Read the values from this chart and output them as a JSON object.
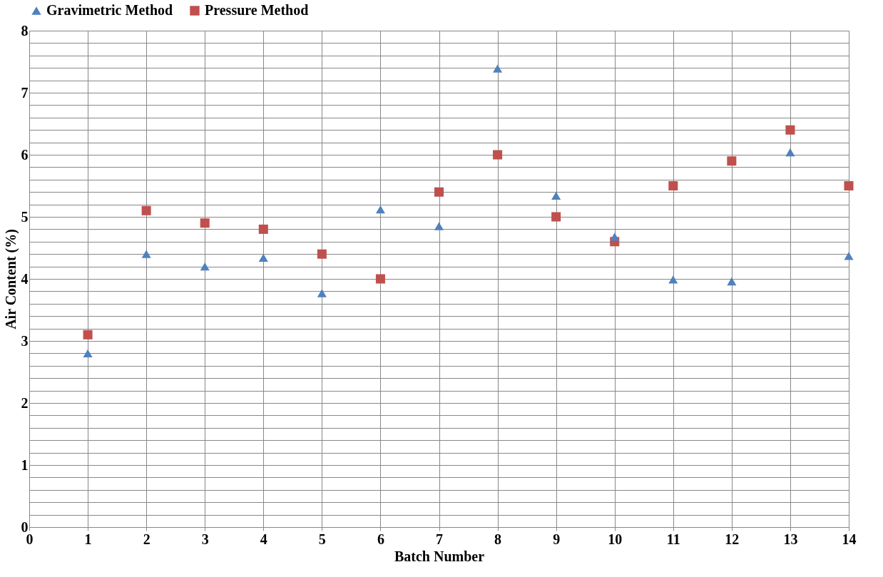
{
  "chart_data": {
    "type": "scatter",
    "xlabel": "Batch Number",
    "ylabel": "Air Content (%)",
    "x": [
      1,
      2,
      3,
      4,
      5,
      6,
      7,
      8,
      9,
      10,
      11,
      12,
      13,
      14
    ],
    "series": [
      {
        "name": "Gravimetric Method",
        "color": "#4f81bd",
        "marker": "triangle",
        "values": [
          2.8,
          4.4,
          4.2,
          4.34,
          3.77,
          5.12,
          4.85,
          7.39,
          5.34,
          4.68,
          3.99,
          3.96,
          6.04,
          4.37
        ]
      },
      {
        "name": "Pressure Method",
        "color": "#c0504d",
        "marker": "square",
        "values": [
          3.1,
          5.1,
          4.9,
          4.8,
          4.4,
          4.0,
          5.4,
          6.0,
          5.0,
          4.6,
          5.5,
          5.9,
          6.4,
          5.5
        ]
      }
    ],
    "xlim": [
      0,
      14
    ],
    "xticks": [
      0,
      1,
      2,
      3,
      4,
      5,
      6,
      7,
      8,
      9,
      10,
      11,
      12,
      13,
      14
    ],
    "ylim": [
      0,
      8
    ],
    "yticks": [
      0,
      {
        "value": 0.2,
        "label": null
      },
      {
        "value": 0.4,
        "label": null
      },
      {
        "value": 0.6,
        "label": null
      },
      {
        "value": 0.8,
        "label": null
      },
      1,
      {
        "value": 1.2,
        "label": null
      },
      {
        "value": 1.4,
        "label": null
      },
      {
        "value": 1.6,
        "label": null
      },
      {
        "value": 1.8,
        "label": null
      },
      2,
      {
        "value": 2.2,
        "label": null
      },
      {
        "value": 2.4,
        "label": null
      },
      {
        "value": 2.6,
        "label": null
      },
      {
        "value": 2.8,
        "label": null
      },
      3,
      {
        "value": 3.2,
        "label": null
      },
      {
        "value": 3.4,
        "label": null
      },
      {
        "value": 3.6,
        "label": null
      },
      {
        "value": 3.8,
        "label": null
      },
      4,
      {
        "value": 4.2,
        "label": null
      },
      {
        "value": 4.4,
        "label": null
      },
      {
        "value": 4.6,
        "label": null
      },
      {
        "value": 4.8,
        "label": null
      },
      5,
      {
        "value": 5.2,
        "label": null
      },
      {
        "value": 5.4,
        "label": null
      },
      {
        "value": 5.6,
        "label": null
      },
      {
        "value": 5.8,
        "label": null
      },
      6,
      {
        "value": 6.2,
        "label": null
      },
      {
        "value": 6.4,
        "label": null
      },
      {
        "value": 6.6,
        "label": null
      },
      {
        "value": 6.8,
        "label": null
      },
      7,
      {
        "value": 7.2,
        "label": null
      },
      {
        "value": 7.4,
        "label": null
      },
      {
        "value": 7.6,
        "label": null
      },
      {
        "value": 7.8,
        "label": null
      },
      8
    ],
    "grid": true,
    "legend": "top"
  }
}
